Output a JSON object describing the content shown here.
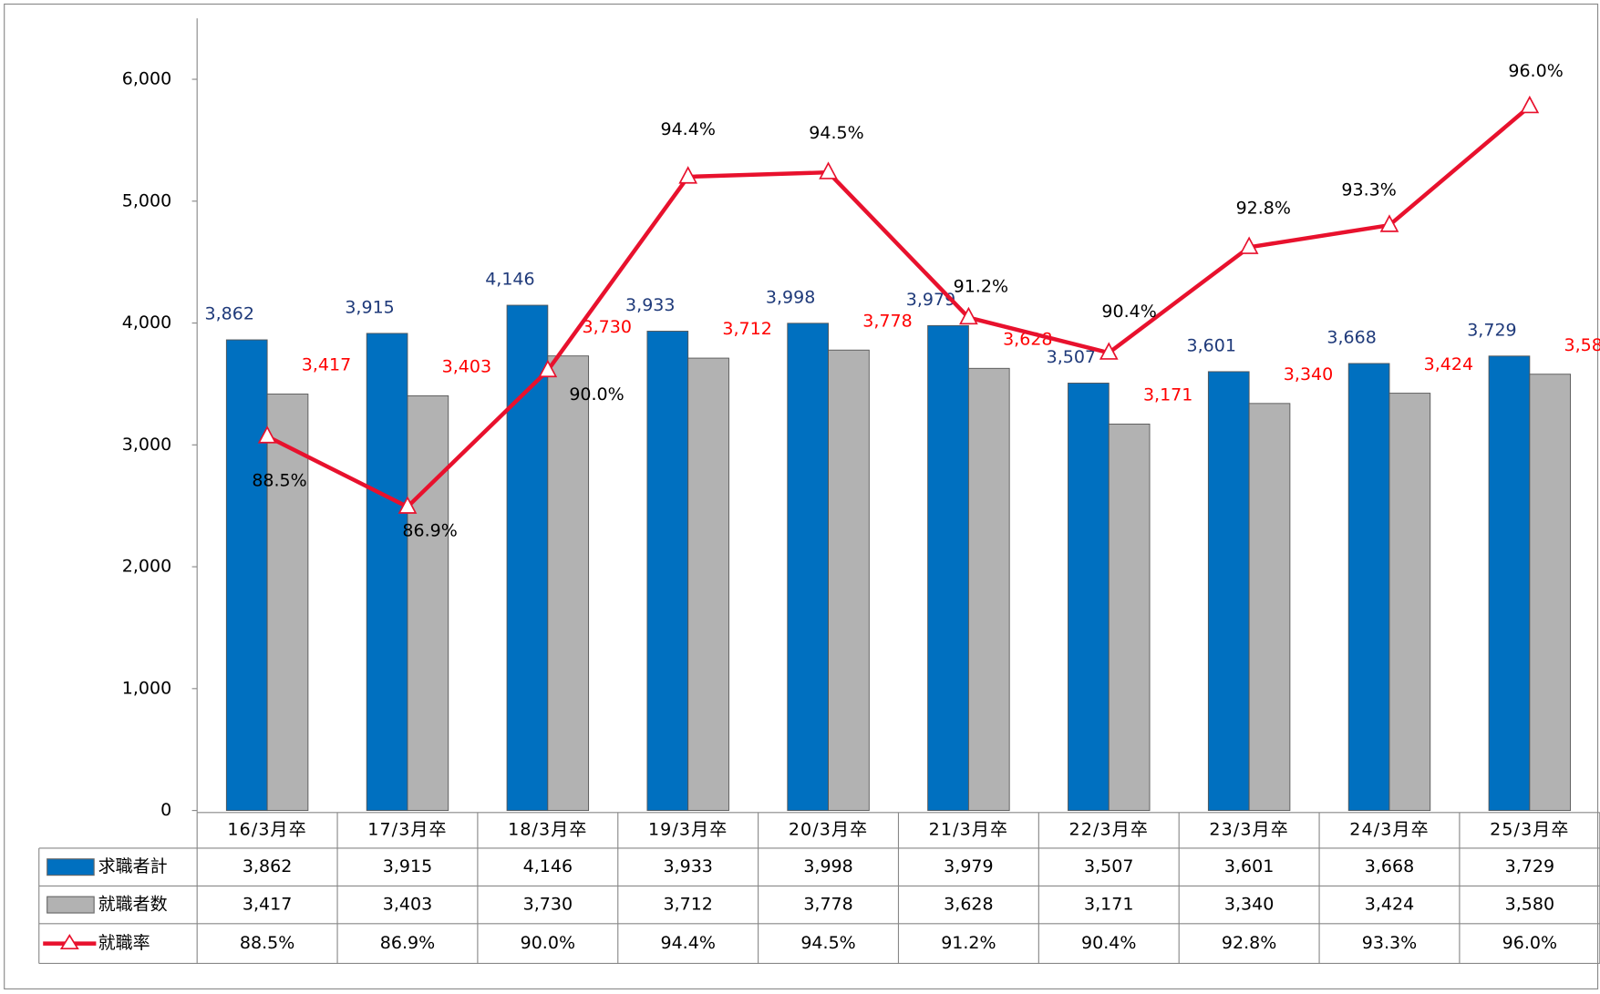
{
  "chart_data": {
    "type": "bar",
    "categories": [
      "16/3月卒",
      "17/3月卒",
      "18/3月卒",
      "19/3月卒",
      "20/3月卒",
      "21/3月卒",
      "22/3月卒",
      "23/3月卒",
      "24/3月卒",
      "25/3月卒"
    ],
    "series": [
      {
        "name": "求職者計",
        "color": "#0070c0",
        "type": "bar",
        "values": [
          3862,
          3915,
          4146,
          3933,
          3998,
          3979,
          3507,
          3601,
          3668,
          3729
        ],
        "value_labels": [
          "3,862",
          "3,915",
          "4,146",
          "3,933",
          "3,998",
          "3,979",
          "3,507",
          "3,601",
          "3,668",
          "3,729"
        ]
      },
      {
        "name": "就職者数",
        "color": "#b2b2b2",
        "type": "bar",
        "values": [
          3417,
          3403,
          3730,
          3712,
          3778,
          3628,
          3171,
          3340,
          3424,
          3580
        ],
        "value_labels": [
          "3,417",
          "3,403",
          "3,730",
          "3,712",
          "3,778",
          "3,628",
          "3,171",
          "3,340",
          "3,424",
          "3,580"
        ]
      },
      {
        "name": "就職率",
        "color": "#e8112d",
        "type": "line",
        "axis": "y2",
        "values": [
          88.5,
          86.9,
          90.0,
          94.4,
          94.5,
          91.2,
          90.4,
          92.8,
          93.3,
          96.0
        ],
        "value_labels": [
          "88.5%",
          "86.9%",
          "90.0%",
          "94.4%",
          "94.5%",
          "91.2%",
          "90.4%",
          "92.8%",
          "93.3%",
          "96.0%"
        ]
      }
    ],
    "ylim": [
      0,
      6500
    ],
    "yticks": [
      0,
      {
        "value": 1000,
        "label": "1,000"
      },
      {
        "value": 2000,
        "label": "2,000"
      },
      {
        "value": 3000,
        "label": "3,000"
      },
      {
        "value": 4000,
        "label": "4,000"
      },
      {
        "value": 5000,
        "label": "5,000"
      },
      {
        "value": 6000,
        "label": "6,000"
      }
    ],
    "y2lim": [
      80,
      98
    ],
    "grid": false
  }
}
